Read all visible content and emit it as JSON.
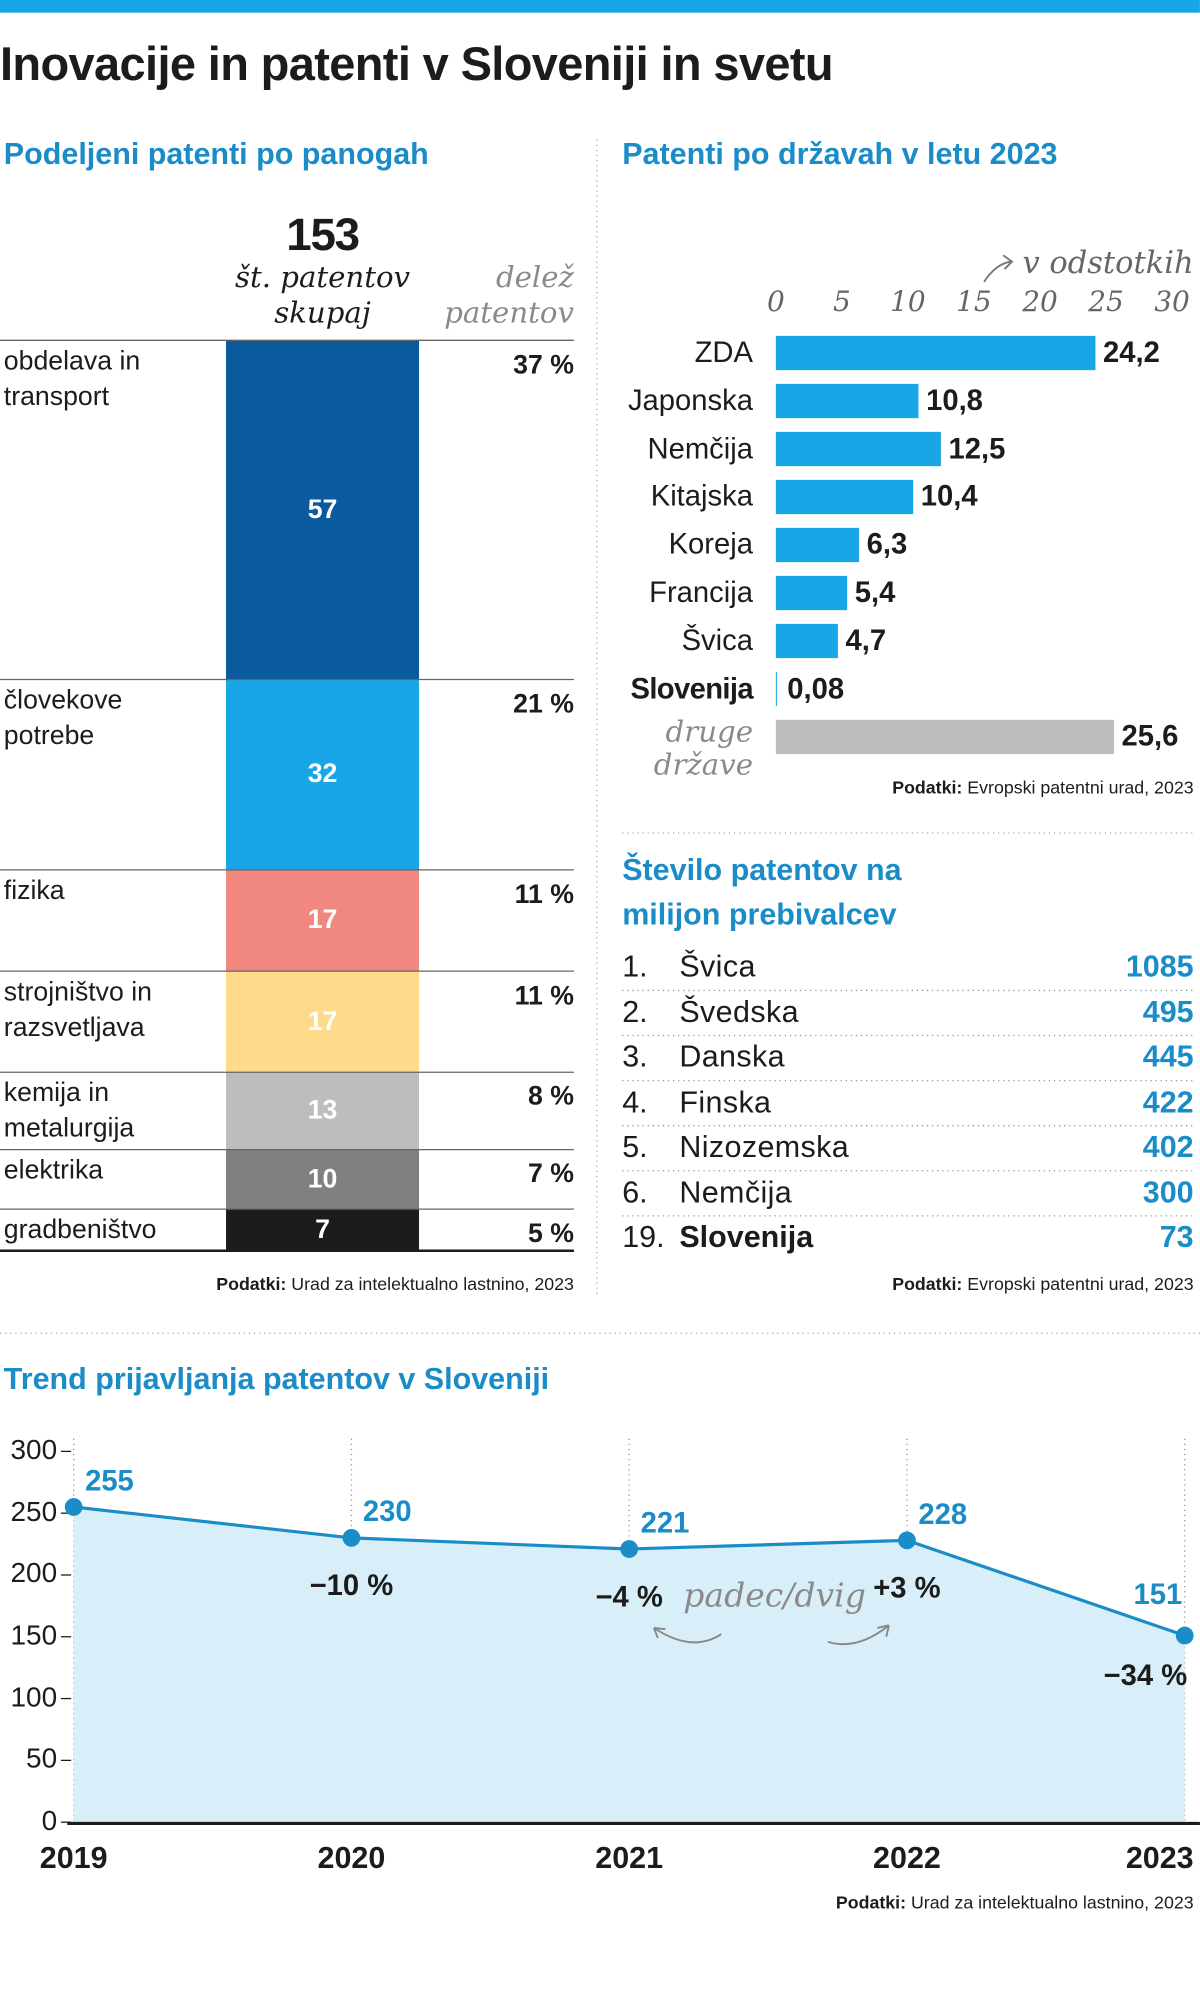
{
  "title": "Inovacije in patenti v Sloveniji in svetu",
  "chart_data": [
    {
      "type": "stacked-column",
      "title": "Podeljeni patenti po panogah",
      "total": 153,
      "total_label": "št. patentov skupaj",
      "share_header": "delež patentov",
      "categories": [
        "obdelava in transport",
        "človekove potrebe",
        "fizika",
        "strojništvo in razsvetljava",
        "kemija in metalurgija",
        "elektrika",
        "gradbeništvo"
      ],
      "values": [
        57,
        32,
        17,
        17,
        13,
        10,
        7
      ],
      "colors": [
        "#0b5a9e",
        "#1aa6e6",
        "#f08880",
        "#fddb8b",
        "#bdbdbd",
        "#808080",
        "#1c1c1c"
      ],
      "shares": [
        37,
        21,
        11,
        11,
        8,
        7,
        5
      ],
      "share_labels": [
        "37 %",
        "21 %",
        "11 %",
        "11 %",
        "8 %",
        "7 %",
        "5 %"
      ],
      "source_label": "Podatki:",
      "source": "Urad za intelektualno lastnino, 2023"
    },
    {
      "type": "hbar",
      "title": "Patenti po državah v letu 2023",
      "axis_label": "v odstotkih",
      "categories": [
        "ZDA",
        "Japonska",
        "Nemčija",
        "Kitajska",
        "Koreja",
        "Francija",
        "Švica",
        "Slovenija",
        "druge države"
      ],
      "values": [
        24.2,
        10.8,
        12.5,
        10.4,
        6.3,
        5.4,
        4.7,
        0.08,
        25.6
      ],
      "value_labels": [
        "24,2",
        "10,8",
        "12,5",
        "10,4",
        "6,3",
        "5,4",
        "4,7",
        "0,08",
        "25,6"
      ],
      "colors": [
        "#1aa6e6",
        "#1aa6e6",
        "#1aa6e6",
        "#1aa6e6",
        "#1aa6e6",
        "#1aa6e6",
        "#1aa6e6",
        "#1aa6e6",
        "#bdbdbd"
      ],
      "xlim": [
        0,
        30
      ],
      "xticks": [
        0,
        5,
        10,
        15,
        20,
        25,
        30
      ],
      "source_label": "Podatki:",
      "source": "Evropski patentni urad, 2023"
    },
    {
      "type": "line",
      "title": "Trend prijavljanja patentov v Sloveniji",
      "categories": [
        "2019",
        "2020",
        "2021",
        "2022",
        "2023"
      ],
      "values": [
        255,
        230,
        221,
        228,
        151
      ],
      "changes": [
        null,
        -10,
        -4,
        3,
        -34
      ],
      "change_labels": [
        null,
        "−10 %",
        "−4 %",
        "+3 %",
        "−34 %"
      ],
      "annotation": "padec/dvig",
      "color": "#1a8cc7",
      "area_color": "#d8eef9",
      "ylim": [
        0,
        300
      ],
      "yticks": [
        0,
        50,
        100,
        150,
        200,
        250,
        300
      ],
      "source_label": "Podatki:",
      "source": "Urad za intelektualno lastnino, 2023"
    }
  ],
  "table": {
    "title": "Število patentov na milijon prebivalcev",
    "rows": [
      [
        "1.",
        "Švica",
        1085
      ],
      [
        "2.",
        "Švedska",
        495
      ],
      [
        "3.",
        "Danska",
        445
      ],
      [
        "4.",
        "Finska",
        422
      ],
      [
        "5.",
        "Nizozemska",
        402
      ],
      [
        "6.",
        "Nemčija",
        300
      ],
      [
        "19.",
        "Slovenija",
        73
      ]
    ],
    "source_label": "Podatki:",
    "source": "Evropski patentni urad, 2023"
  }
}
